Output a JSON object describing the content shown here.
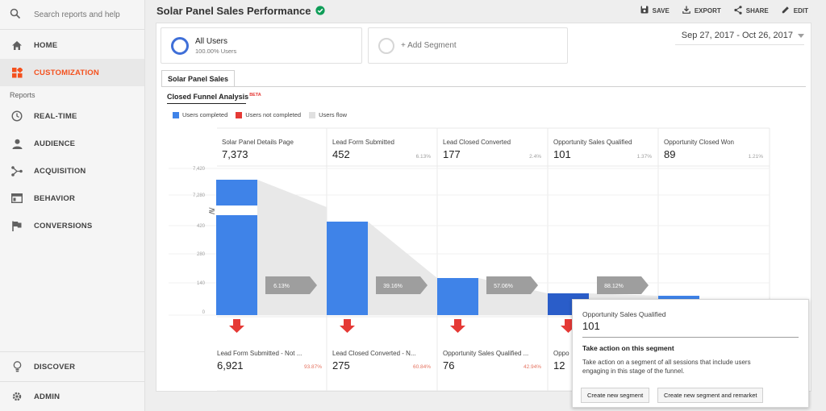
{
  "sidebar": {
    "search_placeholder": "Search reports and help",
    "home": "HOME",
    "customization": "CUSTOMIZATION",
    "reports_label": "Reports",
    "realtime": "REAL-TIME",
    "audience": "AUDIENCE",
    "acquisition": "ACQUISITION",
    "behavior": "BEHAVIOR",
    "conversions": "CONVERSIONS",
    "discover": "DISCOVER",
    "admin": "ADMIN"
  },
  "header": {
    "title": "Solar Panel Sales Performance",
    "save": "SAVE",
    "export": "EXPORT",
    "share": "SHARE",
    "edit": "EDIT"
  },
  "segments": {
    "all_users": "All Users",
    "all_users_pct": "100.00% Users",
    "add_segment": "+ Add Segment"
  },
  "date_range": "Sep 27, 2017 - Oct 26, 2017",
  "tab_label": "Solar Panel Sales",
  "funnel": {
    "title": "Closed Funnel Analysis",
    "beta": "BETA",
    "legend": {
      "completed": "Users completed",
      "not_completed": "Users not completed",
      "flow": "Users flow"
    },
    "y_ticks": [
      "7,420",
      "7,280",
      "420",
      "280",
      "140",
      "0"
    ],
    "stages": [
      {
        "name": "Solar Panel Details Page",
        "value": "7,373",
        "pct": "",
        "users": 7373
      },
      {
        "name": "Lead Form Submitted",
        "value": "452",
        "pct": "6.13%",
        "users": 452
      },
      {
        "name": "Lead Closed Converted",
        "value": "177",
        "pct": "2.4%",
        "users": 177
      },
      {
        "name": "Opportunity Sales Qualified",
        "value": "101",
        "pct": "1.37%",
        "users": 101
      },
      {
        "name": "Opportunity Closed Won",
        "value": "89",
        "pct": "1.21%",
        "users": 89
      }
    ],
    "flow_pcts": [
      "6.13%",
      "39.16%",
      "57.06%",
      "88.12%"
    ],
    "dropoffs": [
      {
        "name": "Lead Form Submitted - Not ...",
        "value": "6,921",
        "pct": "93.87%"
      },
      {
        "name": "Lead Closed Converted - N...",
        "value": "275",
        "pct": "60.84%"
      },
      {
        "name": "Opportunity Sales Qualified ...",
        "value": "76",
        "pct": "42.94%"
      },
      {
        "name": "Oppo",
        "value": "12",
        "pct": ""
      }
    ]
  },
  "popup": {
    "stage": "Opportunity Sales Qualified",
    "value": "101",
    "heading": "Take action on this segment",
    "body_line1": "Take action on a segment of all sessions that include users",
    "body_line2": "engaging in this stage of the funnel.",
    "button1": "Create new segment",
    "button2": "Create new segment and remarket"
  },
  "colors": {
    "completed": "#3f83e8",
    "not_completed": "#e53935",
    "flow": "#e0e0e0",
    "accent": "#f4511e",
    "pct_text": "#e57360"
  }
}
